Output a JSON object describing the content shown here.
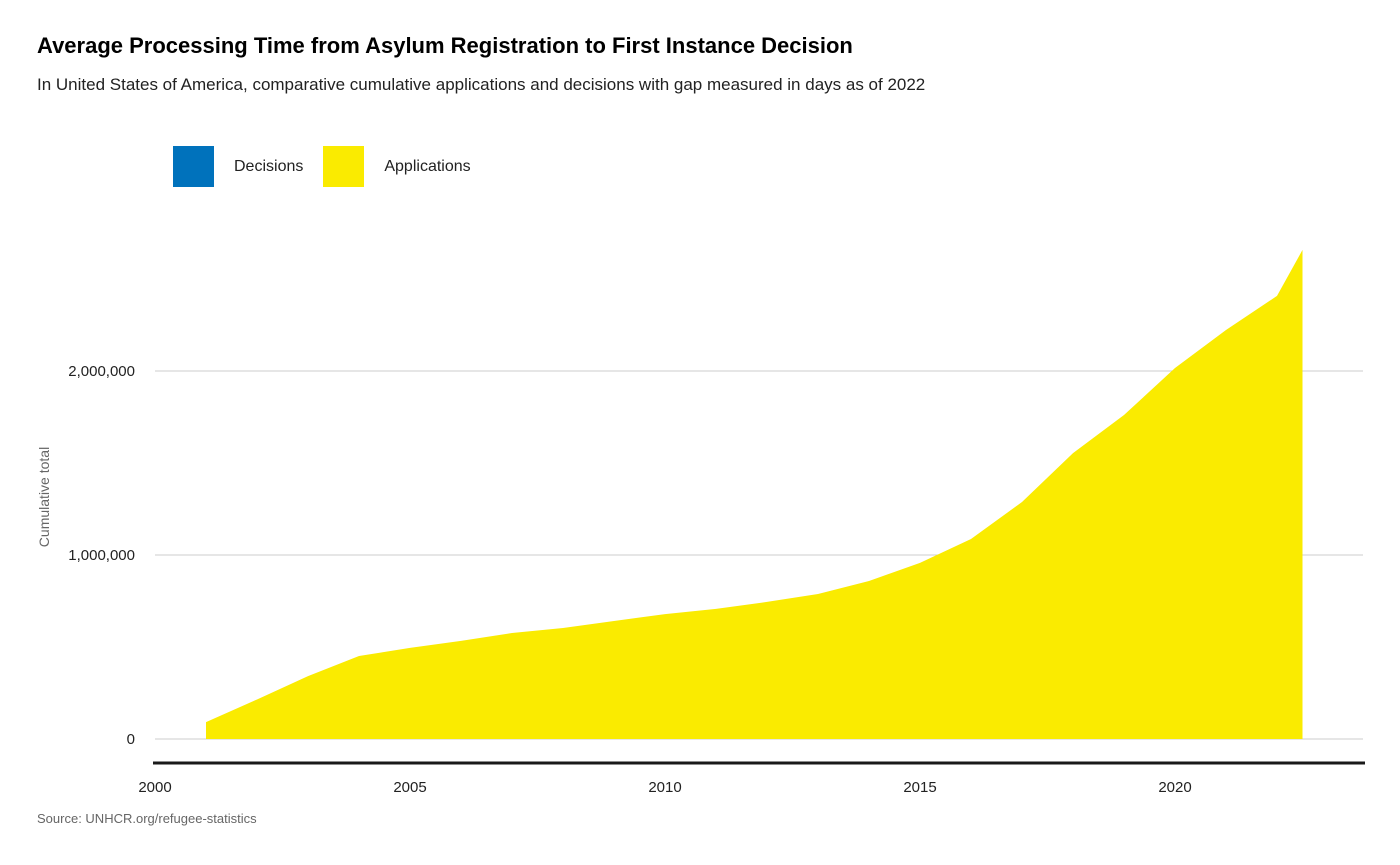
{
  "title": "Average Processing Time from Asylum Registration to First Instance Decision",
  "subtitle": "In United States of America, comparative cumulative applications and decisions with gap measured in days as of 2022",
  "source": "Source: UNHCR.org/refugee-statistics",
  "legend": [
    {
      "label": "Decisions",
      "color": "#0072bc"
    },
    {
      "label": "Applications",
      "color": "#faeb00"
    }
  ],
  "chart_data": {
    "type": "area",
    "title": "Average Processing Time from Asylum Registration to First Instance Decision",
    "ylabel": "Cumulative total",
    "xlabel": "",
    "xlim": [
      2000,
      2023.5
    ],
    "ylim": [
      0,
      2800000
    ],
    "x_ticks": [
      2000,
      2005,
      2010,
      2015,
      2020
    ],
    "y_ticks": [
      0,
      1000000,
      2000000
    ],
    "y_tick_labels": [
      "0",
      "1,000,000",
      "2,000,000"
    ],
    "grid": true,
    "legend_position": "top-left",
    "series": [
      {
        "name": "Decisions",
        "color": "#0072bc",
        "x": [],
        "values": []
      },
      {
        "name": "Applications",
        "color": "#faeb00",
        "x": [
          2001,
          2002,
          2003,
          2004,
          2005,
          2006,
          2007,
          2008,
          2009,
          2010,
          2011,
          2012,
          2013,
          2014,
          2015,
          2016,
          2017,
          2018,
          2019,
          2020,
          2021,
          2022,
          2022.5
        ],
        "values": [
          92000,
          215000,
          342000,
          451000,
          495000,
          533000,
          576000,
          603000,
          641000,
          679000,
          707000,
          745000,
          788000,
          859000,
          957000,
          1087000,
          1288000,
          1554000,
          1761000,
          2016000,
          2223000,
          2408000,
          2658000
        ]
      }
    ]
  }
}
